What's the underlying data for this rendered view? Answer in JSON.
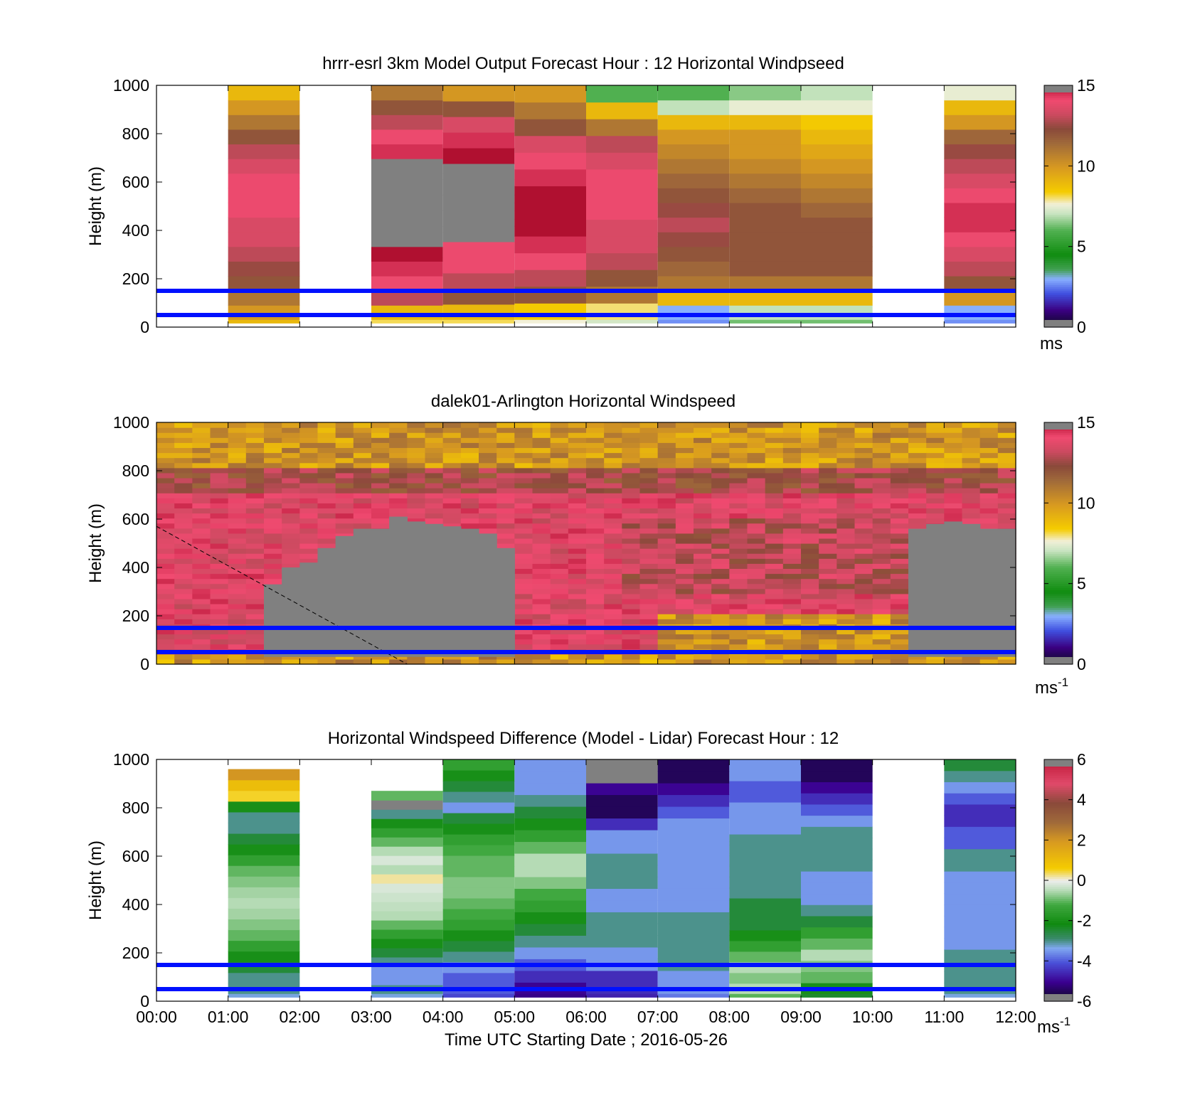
{
  "figure": {
    "xlabel": "Time UTC  Starting Date ; 2016-05-26",
    "x_tick_labels": [
      "00:00",
      "01:00",
      "02:00",
      "03:00",
      "04:00",
      "05:00",
      "06:00",
      "07:00",
      "08:00",
      "09:00",
      "10:00",
      "11:00",
      "12:00"
    ],
    "y_tick_labels": [
      "0",
      "200",
      "400",
      "600",
      "800",
      "1000"
    ],
    "ylabel": "Height (m)",
    "reference_line_color": "#0010ff",
    "missing_color": "#808080"
  },
  "chart_data": [
    {
      "type": "heatmap",
      "title": "hrrr-esrl 3km Model Output   Forecast Hour : 12 Horizontal Windpseed",
      "ylabel": "Height (m)",
      "xlim_hours": [
        0,
        12
      ],
      "ylim": [
        0,
        1000
      ],
      "colorbar": {
        "min": 0,
        "max": 15,
        "ticks": [
          "0",
          "5",
          "10",
          "15"
        ],
        "unit": "ms",
        "unit_sup": ""
      },
      "reference_heights_m": [
        50,
        150
      ],
      "columns": [
        {
          "hour_start": 0,
          "hour_end": 1,
          "values": null
        },
        {
          "hour_start": 1,
          "hour_end": 2,
          "values": [
            10,
            11,
            12,
            12.5,
            13,
            13.5,
            13.5,
            14,
            14,
            14,
            13.5,
            13,
            12,
            11,
            10,
            9
          ]
        },
        {
          "hour_start": 2,
          "hour_end": 3,
          "values": null
        },
        {
          "hour_start": 3,
          "hour_end": 4,
          "values": [
            9,
            13,
            14,
            14.5,
            15,
            null,
            null,
            null,
            null,
            null,
            null,
            14.5,
            14,
            13,
            12,
            11
          ]
        },
        {
          "hour_start": 4,
          "hour_end": 5,
          "values": [
            9,
            12,
            13,
            14,
            14,
            null,
            null,
            null,
            null,
            null,
            15,
            14.5,
            13.5,
            12,
            10
          ]
        },
        {
          "hour_start": 5,
          "hour_end": 6,
          "values": [
            8.5,
            12,
            13,
            14,
            14.5,
            15,
            15,
            15,
            14.5,
            14,
            13.5,
            12,
            11,
            10
          ]
        },
        {
          "hour_start": 6,
          "hour_end": 7,
          "values": [
            8,
            11,
            12,
            13,
            13.5,
            13.5,
            14,
            14,
            14,
            13.5,
            13,
            11,
            9,
            6
          ]
        },
        {
          "hour_start": 7,
          "hour_end": 8,
          "values": [
            3,
            9,
            11,
            11.5,
            12,
            12.5,
            13,
            12.5,
            12,
            11.5,
            11,
            10.5,
            10,
            9,
            7,
            6
          ]
        },
        {
          "hour_start": 8,
          "hour_end": 9,
          "values": [
            7,
            9,
            11,
            12,
            12,
            12,
            12,
            12,
            11.5,
            11,
            10.5,
            10,
            10,
            9,
            7.5,
            6.5
          ]
        },
        {
          "hour_start": 9,
          "hour_end": 10,
          "values": [
            7,
            9,
            11,
            12,
            12,
            12,
            12,
            11.5,
            11,
            10.5,
            10,
            9.5,
            9,
            8.5,
            7.5,
            7
          ]
        },
        {
          "hour_start": 10,
          "hour_end": 11,
          "values": null
        },
        {
          "hour_start": 11,
          "hour_end": 12,
          "values": [
            3,
            10,
            12,
            13,
            13.5,
            14,
            14.5,
            14.5,
            14,
            13.5,
            13,
            12.5,
            11.5,
            10,
            9,
            7.5
          ]
        }
      ]
    },
    {
      "type": "heatmap",
      "title": "dalek01-Arlington  Horizontal Windspeed",
      "ylabel": "Height (m)",
      "xlim_hours": [
        0,
        12
      ],
      "ylim": [
        0,
        1000
      ],
      "colorbar": {
        "min": 0,
        "max": 15,
        "ticks": [
          "0",
          "5",
          "10",
          "15"
        ],
        "unit": "ms",
        "unit_sup": "-1"
      },
      "reference_heights_m": [
        50,
        150
      ],
      "missing_region_top_m": [
        null,
        null,
        null,
        null,
        null,
        null,
        330,
        400,
        420,
        480,
        530,
        560,
        560,
        610,
        590,
        580,
        570,
        560,
        540,
        480,
        null,
        null,
        null,
        null,
        null,
        null,
        null,
        null,
        null,
        null,
        null,
        null,
        null,
        null,
        null,
        null,
        null,
        null,
        null,
        null,
        null,
        null,
        560,
        580,
        590,
        580,
        560,
        560
      ],
      "lidar_profile_hours": [
        0,
        0.25,
        0.5,
        0.75,
        1,
        1.25,
        1.5,
        1.75,
        2,
        2.25,
        2.5,
        2.75,
        3,
        3.25,
        3.5,
        3.75,
        4,
        4.25,
        4.5,
        4.75,
        5,
        5.25,
        5.5,
        5.75,
        6,
        6.25,
        6.5,
        6.75,
        7,
        7.25,
        7.5,
        7.75,
        8,
        8.25,
        8.5,
        8.75,
        9,
        9.25,
        9.5,
        9.75,
        10,
        10.25,
        10.5,
        10.75,
        11,
        11.25,
        11.5,
        11.75
      ],
      "dashed_line": {
        "start": [
          0,
          570
        ],
        "end": [
          3.5,
          0
        ]
      }
    },
    {
      "type": "heatmap",
      "title": "Horizontal Windspeed Difference (Model - Lidar) Forecast Hour : 12",
      "xlabel": "Time UTC  Starting Date ; 2016-05-26",
      "ylabel": "Height (m)",
      "xlim_hours": [
        0,
        12
      ],
      "ylim": [
        0,
        1000
      ],
      "colorbar": {
        "min": -6,
        "max": 6,
        "ticks": [
          "-6",
          "-4",
          "-2",
          "0",
          "2",
          "4",
          "6"
        ],
        "unit": "ms",
        "unit_sup": "-1"
      },
      "reference_heights_m": [
        50,
        150
      ],
      "columns": [
        {
          "hour_start": 0,
          "hour_end": 1,
          "values": null
        },
        {
          "hour_start": 1,
          "hour_end": 2,
          "values": [
            -3,
            -3,
            -2.5,
            -2,
            -1.5,
            -1,
            -0.8,
            -0.6,
            -0.5,
            -0.6,
            -0.8,
            -1,
            -1.5,
            -2,
            -2.5,
            -3,
            -3,
            -2,
            0.5,
            1,
            2
          ]
        },
        {
          "hour_start": 2,
          "hour_end": 3,
          "values": null
        },
        {
          "hour_start": 3,
          "hour_end": 4,
          "values": [
            -3,
            -3.5,
            -3.5,
            -3,
            -2.5,
            -2,
            -1.5,
            -1,
            -0.5,
            -0.4,
            -0.3,
            -0.2,
            0.2,
            -0.5,
            -0.2,
            -0.5,
            -1,
            -1.5,
            -2,
            -3,
            null,
            -1
          ]
        },
        {
          "hour_start": 4,
          "hour_end": 5,
          "values": [
            -4,
            -4,
            -3.5,
            -3,
            -2.5,
            -2,
            -1.5,
            -1.2,
            -1,
            -0.8,
            -0.8,
            -1,
            -1,
            -1.2,
            -1.5,
            -2,
            -2.5,
            -3.5,
            -3,
            -2.5,
            -2,
            -1.5
          ]
        },
        {
          "hour_start": 5,
          "hour_end": 6,
          "values": [
            -5,
            -4.5,
            -4,
            -3.5,
            -3,
            -2.5,
            -2,
            -1.5,
            -1.2,
            -0.8,
            -0.5,
            -0.5,
            -1,
            -1.5,
            -2,
            -2.5,
            -3,
            -3.5,
            -3.5,
            -3.5
          ]
        },
        {
          "hour_start": 6,
          "hour_end": 7,
          "values": [
            -4.5,
            -4.5,
            -3.5,
            -3.5,
            -3,
            -3,
            -3,
            -3.5,
            -3.5,
            -3,
            -3,
            -3,
            -3.5,
            -3.5,
            -4.5,
            -5.5,
            -5.5,
            -5,
            null,
            null
          ]
        },
        {
          "hour_start": 7,
          "hour_end": 8,
          "values": [
            -3.5,
            -3.5,
            -3,
            -3,
            -3,
            -3,
            -3,
            -3.5,
            -3.5,
            -3.5,
            -3.5,
            -3.5,
            -3.5,
            -3.5,
            -3.5,
            -4,
            -4.5,
            -5,
            -5.5,
            -5.5
          ]
        },
        {
          "hour_start": 8,
          "hour_end": 9,
          "values": [
            -0.5,
            -0.8,
            -0.5,
            -1,
            -1.5,
            -2,
            -2.5,
            -2.5,
            -2.5,
            -3,
            -3,
            -3,
            -3,
            -3,
            -3,
            -3.5,
            -3.5,
            -3.5,
            -4,
            -4,
            -3.5,
            -3.5
          ]
        },
        {
          "hour_start": 9,
          "hour_end": 10,
          "values": [
            -2,
            -1,
            -0.8,
            -0.5,
            -1,
            -1.5,
            -2.5,
            -3,
            -3.5,
            -3.5,
            -3.5,
            -3,
            -3,
            -3,
            -3,
            -3.5,
            -4,
            -4.5,
            -5,
            -5.5,
            -5.5
          ]
        },
        {
          "hour_start": 10,
          "hour_end": 11,
          "values": null
        },
        {
          "hour_start": 11,
          "hour_end": 12,
          "values": [
            -3,
            -3,
            -3,
            -3,
            -3.5,
            -3.5,
            -3.5,
            -3.5,
            -3.5,
            -3.5,
            -3.5,
            -3,
            -3,
            -4,
            -4,
            -4.5,
            -4.5,
            -4,
            -3.5,
            -3,
            -2.5
          ]
        }
      ]
    }
  ]
}
